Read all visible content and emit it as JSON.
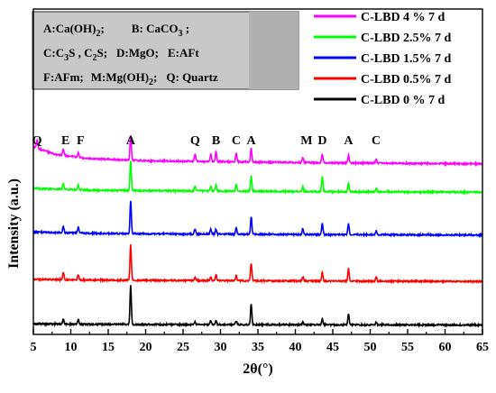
{
  "chart_data": {
    "type": "line",
    "xlabel": "2θ(°)",
    "ylabel": "Intensity  (a.u.)",
    "xlim": [
      5,
      65
    ],
    "x_ticks": [
      5,
      10,
      15,
      20,
      25,
      30,
      35,
      40,
      45,
      50,
      55,
      60,
      65
    ],
    "y_ticks": [],
    "grid": false,
    "legend_position": "top-right",
    "series": [
      {
        "name": "C-LBD  4 %   7 d",
        "color": "#ff00ff",
        "offset": 4,
        "peaks": [
          [
            5.5,
            0.35
          ],
          [
            9.0,
            0.25
          ],
          [
            11.0,
            0.2
          ],
          [
            18.0,
            1.0
          ],
          [
            26.6,
            0.3
          ],
          [
            28.7,
            0.3
          ],
          [
            29.4,
            0.4
          ],
          [
            32.1,
            0.35
          ],
          [
            34.1,
            0.55
          ],
          [
            41.0,
            0.2
          ],
          [
            43.6,
            0.35
          ],
          [
            47.1,
            0.3
          ],
          [
            50.8,
            0.15
          ]
        ],
        "baseline": [
          [
            5,
            0.75
          ],
          [
            8,
            0.45
          ],
          [
            12,
            0.3
          ],
          [
            20,
            0.2
          ],
          [
            35,
            0.15
          ],
          [
            45,
            0.12
          ],
          [
            65,
            0.08
          ]
        ]
      },
      {
        "name": "C-LBD 2.5%   7 d",
        "color": "#00ff00",
        "offset": 3,
        "peaks": [
          [
            9.0,
            0.25
          ],
          [
            11.0,
            0.2
          ],
          [
            18.0,
            1.2
          ],
          [
            26.6,
            0.2
          ],
          [
            28.7,
            0.2
          ],
          [
            29.4,
            0.25
          ],
          [
            32.1,
            0.25
          ],
          [
            34.1,
            0.6
          ],
          [
            41.0,
            0.2
          ],
          [
            43.6,
            0.6
          ],
          [
            47.1,
            0.35
          ],
          [
            50.8,
            0.15
          ]
        ],
        "baseline": [
          [
            5,
            0.25
          ],
          [
            12,
            0.18
          ],
          [
            25,
            0.15
          ],
          [
            45,
            0.12
          ],
          [
            65,
            0.1
          ]
        ]
      },
      {
        "name": "C-LBD 1.5%   7 d",
        "color": "#0000ff",
        "offset": 2,
        "peaks": [
          [
            9.0,
            0.25
          ],
          [
            11.0,
            0.25
          ],
          [
            18.0,
            1.3
          ],
          [
            26.6,
            0.2
          ],
          [
            28.7,
            0.2
          ],
          [
            29.4,
            0.2
          ],
          [
            32.1,
            0.25
          ],
          [
            34.1,
            0.7
          ],
          [
            41.0,
            0.25
          ],
          [
            43.6,
            0.45
          ],
          [
            47.1,
            0.45
          ],
          [
            50.8,
            0.15
          ]
        ],
        "baseline": [
          [
            5,
            0.2
          ],
          [
            12,
            0.15
          ],
          [
            25,
            0.12
          ],
          [
            45,
            0.1
          ],
          [
            65,
            0.08
          ]
        ]
      },
      {
        "name": "C-LBD 0.5%   7 d",
        "color": "#ff0000",
        "offset": 1,
        "peaks": [
          [
            9.0,
            0.3
          ],
          [
            11.0,
            0.2
          ],
          [
            18.0,
            1.4
          ],
          [
            26.6,
            0.15
          ],
          [
            28.7,
            0.15
          ],
          [
            29.4,
            0.25
          ],
          [
            32.1,
            0.2
          ],
          [
            34.1,
            0.7
          ],
          [
            41.0,
            0.15
          ],
          [
            43.6,
            0.35
          ],
          [
            47.1,
            0.5
          ],
          [
            50.8,
            0.15
          ]
        ],
        "baseline": [
          [
            5,
            0.15
          ],
          [
            12,
            0.12
          ],
          [
            25,
            0.1
          ],
          [
            45,
            0.08
          ],
          [
            65,
            0.06
          ]
        ]
      },
      {
        "name": "C-LBD   0 %   7 d",
        "color": "#000000",
        "offset": 0,
        "peaks": [
          [
            9.0,
            0.2
          ],
          [
            11.0,
            0.2
          ],
          [
            18.0,
            1.55
          ],
          [
            26.6,
            0.1
          ],
          [
            28.7,
            0.15
          ],
          [
            29.4,
            0.15
          ],
          [
            32.1,
            0.15
          ],
          [
            34.1,
            0.8
          ],
          [
            41.0,
            0.1
          ],
          [
            43.6,
            0.25
          ],
          [
            47.1,
            0.45
          ],
          [
            50.8,
            0.1
          ]
        ],
        "baseline": [
          [
            5,
            0.1
          ],
          [
            12,
            0.08
          ],
          [
            25,
            0.07
          ],
          [
            45,
            0.06
          ],
          [
            65,
            0.05
          ]
        ]
      }
    ],
    "annotations": [
      {
        "text": "Q",
        "x": 5.5
      },
      {
        "text": "E",
        "x": 9.3
      },
      {
        "text": "F",
        "x": 11.3
      },
      {
        "text": "A",
        "x": 18.0
      },
      {
        "text": "Q",
        "x": 26.6
      },
      {
        "text": "B",
        "x": 29.4
      },
      {
        "text": "C",
        "x": 32.1
      },
      {
        "text": "A",
        "x": 34.1
      },
      {
        "text": "M",
        "x": 41.5
      },
      {
        "text": "D",
        "x": 43.6
      },
      {
        "text": "A",
        "x": 47.1
      },
      {
        "text": "C",
        "x": 50.8
      }
    ],
    "key_box": {
      "line1": {
        "a_lead": "A:Ca(OH)",
        "a_sub": "2",
        "a_tail": ";",
        "b_lead": "B:  CaCO",
        "b_sub": "3",
        "b_tail": " ;"
      },
      "line2": {
        "p1": "C:C",
        "s1": "3",
        "p2": "S , C",
        "s2": "2",
        "p3": "S;",
        "p4": "D:MgO;",
        "p5": "E:AFt"
      },
      "line3": {
        "p1": "F:AFm;",
        "p2": "M:Mg(OH)",
        "s1": "2",
        "p3": ";",
        "p4": "Q: Quartz"
      }
    }
  }
}
